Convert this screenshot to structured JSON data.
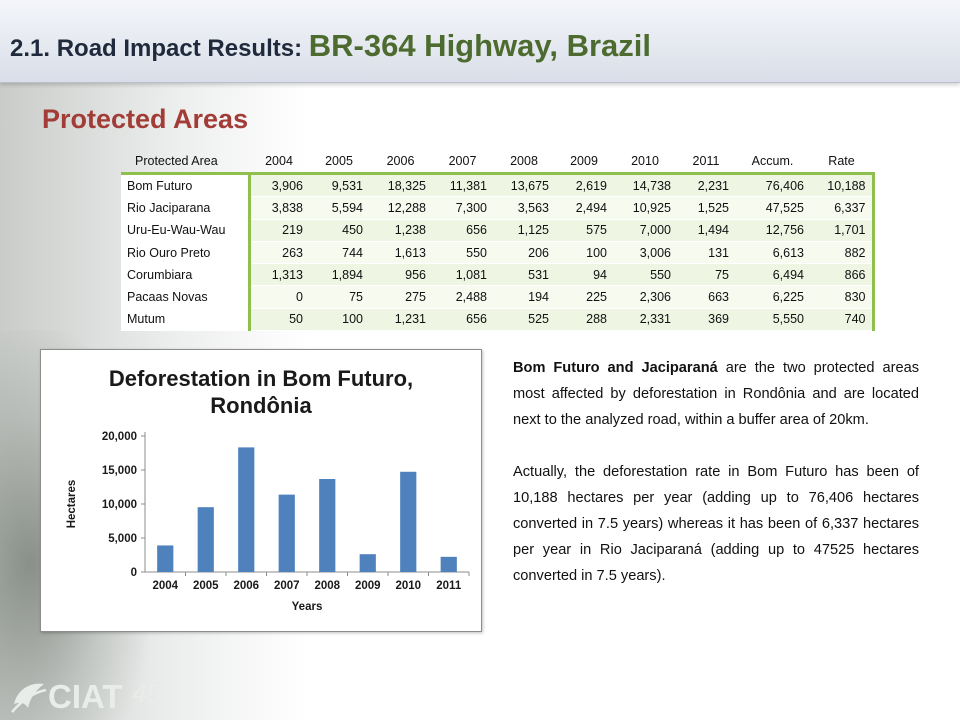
{
  "slide": {
    "title_prefix": "2.1.  Road Impact Results: ",
    "title_main": "BR-364 Highway, Brazil",
    "section_title": "Protected Areas"
  },
  "table": {
    "headers": [
      "Protected Area",
      "2004",
      "2005",
      "2006",
      "2007",
      "2008",
      "2009",
      "2010",
      "2011",
      "Accum.",
      "Rate"
    ],
    "rows": [
      [
        "Bom Futuro",
        "3,906",
        "9,531",
        "18,325",
        "11,381",
        "13,675",
        "2,619",
        "14,738",
        "2,231",
        "76,406",
        "10,188"
      ],
      [
        "Rio Jaciparana",
        "3,838",
        "5,594",
        "12,288",
        "7,300",
        "3,563",
        "2,494",
        "10,925",
        "1,525",
        "47,525",
        "6,337"
      ],
      [
        "Uru-Eu-Wau-Wau",
        "219",
        "450",
        "1,238",
        "656",
        "1,125",
        "575",
        "7,000",
        "1,494",
        "12,756",
        "1,701"
      ],
      [
        "Rio Ouro Preto",
        "263",
        "744",
        "1,613",
        "550",
        "206",
        "100",
        "3,006",
        "131",
        "6,613",
        "882"
      ],
      [
        "Corumbiara",
        "1,313",
        "1,894",
        "956",
        "1,081",
        "531",
        "94",
        "550",
        "75",
        "6,494",
        "866"
      ],
      [
        "Pacaas Novas",
        "0",
        "75",
        "275",
        "2,488",
        "194",
        "225",
        "2,306",
        "663",
        "6,225",
        "830"
      ],
      [
        "Mutum",
        "50",
        "100",
        "1,231",
        "656",
        "525",
        "288",
        "2,331",
        "369",
        "5,550",
        "740"
      ]
    ]
  },
  "chart_data": {
    "type": "bar",
    "title": "Deforestation in Bom Futuro, Rondônia",
    "title_lines": [
      "Deforestation in Bom Futuro,",
      "Rondônia"
    ],
    "xlabel": "Years",
    "ylabel": "Hectares",
    "categories": [
      "2004",
      "2005",
      "2006",
      "2007",
      "2008",
      "2009",
      "2010",
      "2011"
    ],
    "values": [
      3906,
      9531,
      18325,
      11381,
      13675,
      2619,
      14738,
      2231
    ],
    "ylim": [
      0,
      20000
    ],
    "yticks": [
      0,
      5000,
      10000,
      15000,
      20000
    ],
    "ytick_labels": [
      "0",
      "5,000",
      "10,000",
      "15,000",
      "20,000"
    ],
    "grid": false,
    "bar_color": "#4f81bd"
  },
  "text": {
    "p1_bold": "Bom Futuro and Jaciparaná",
    "p1_rest": " are the two protected areas most affected by deforestation in Rondônia and are located next to the analyzed road, within a buffer area of 20km.",
    "p2": "Actually, the deforestation rate in Bom Futuro has been of 10,188 hectares per year (adding up to 76,406 hectares converted in 7.5 years) whereas it has been of 6,337 hectares per year in Rio Jaciparaná (adding up to 47525 hectares converted in 7.5 years)."
  },
  "logo": {
    "text": "CIAT",
    "number": "45",
    "icon": "ciat-leaf-logo-icon",
    "color": "#e9ede9"
  }
}
